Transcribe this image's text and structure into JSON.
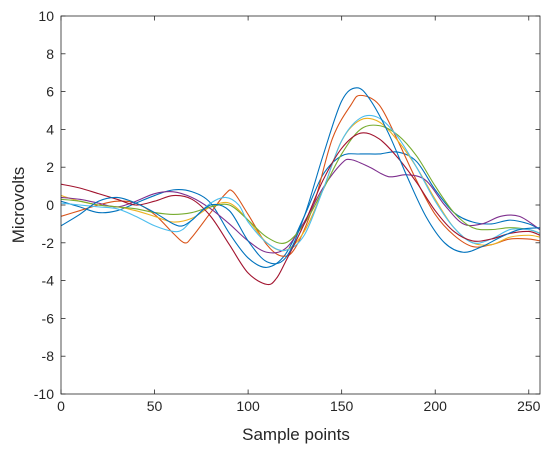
{
  "chart_data": {
    "type": "line",
    "title": "",
    "xlabel": "Sample points",
    "ylabel": "Microvolts",
    "xlim": [
      0,
      256
    ],
    "ylim": [
      -10,
      10
    ],
    "xticks": [
      0,
      50,
      100,
      150,
      200,
      250
    ],
    "yticks": [
      -10,
      -8,
      -6,
      -4,
      -2,
      0,
      2,
      4,
      6,
      8,
      10
    ],
    "grid": false,
    "legend": "none",
    "series": [
      {
        "color": "#0072BD",
        "points": [
          [
            0,
            0.2
          ],
          [
            10,
            -0.1
          ],
          [
            20,
            -0.4
          ],
          [
            30,
            -0.3
          ],
          [
            40,
            0.1
          ],
          [
            50,
            0.5
          ],
          [
            60,
            0.8
          ],
          [
            70,
            0.7
          ],
          [
            80,
            0.1
          ],
          [
            90,
            -1.5
          ],
          [
            100,
            -2.8
          ],
          [
            110,
            -3.3
          ],
          [
            120,
            -2.6
          ],
          [
            130,
            -0.6
          ],
          [
            140,
            1.6
          ],
          [
            150,
            2.6
          ],
          [
            160,
            2.7
          ],
          [
            170,
            2.7
          ],
          [
            180,
            2.8
          ],
          [
            190,
            2.3
          ],
          [
            200,
            0.8
          ],
          [
            210,
            -0.4
          ],
          [
            220,
            -0.9
          ],
          [
            230,
            -1.0
          ],
          [
            240,
            -0.8
          ],
          [
            250,
            -1.0
          ],
          [
            256,
            -1.3
          ]
        ]
      },
      {
        "color": "#D95319",
        "points": [
          [
            0,
            -0.6
          ],
          [
            10,
            -0.3
          ],
          [
            20,
            0.0
          ],
          [
            30,
            0.2
          ],
          [
            40,
            0.1
          ],
          [
            50,
            -0.5
          ],
          [
            60,
            -1.5
          ],
          [
            66,
            -2.0
          ],
          [
            70,
            -1.7
          ],
          [
            80,
            -0.4
          ],
          [
            88,
            0.6
          ],
          [
            92,
            0.7
          ],
          [
            100,
            -0.5
          ],
          [
            110,
            -2.1
          ],
          [
            118,
            -2.7
          ],
          [
            125,
            -2.3
          ],
          [
            135,
            0.0
          ],
          [
            145,
            3.5
          ],
          [
            155,
            5.3
          ],
          [
            160,
            5.8
          ],
          [
            170,
            5.3
          ],
          [
            180,
            3.4
          ],
          [
            190,
            1.3
          ],
          [
            200,
            -0.5
          ],
          [
            210,
            -1.6
          ],
          [
            220,
            -2.2
          ],
          [
            230,
            -2.1
          ],
          [
            240,
            -1.8
          ],
          [
            250,
            -1.8
          ],
          [
            256,
            -1.9
          ]
        ]
      },
      {
        "color": "#EDB120",
        "points": [
          [
            0,
            0.5
          ],
          [
            10,
            0.2
          ],
          [
            20,
            0.0
          ],
          [
            30,
            -0.1
          ],
          [
            40,
            -0.3
          ],
          [
            50,
            -0.6
          ],
          [
            60,
            -0.9
          ],
          [
            70,
            -0.7
          ],
          [
            80,
            -0.1
          ],
          [
            90,
            0.1
          ],
          [
            100,
            -0.8
          ],
          [
            110,
            -2.0
          ],
          [
            120,
            -2.4
          ],
          [
            130,
            -1.4
          ],
          [
            140,
            0.8
          ],
          [
            150,
            3.4
          ],
          [
            160,
            4.5
          ],
          [
            170,
            4.4
          ],
          [
            180,
            3.4
          ],
          [
            190,
            2.0
          ],
          [
            200,
            0.3
          ],
          [
            210,
            -1.2
          ],
          [
            220,
            -2.0
          ],
          [
            230,
            -2.1
          ],
          [
            240,
            -1.7
          ],
          [
            250,
            -1.6
          ],
          [
            256,
            -1.7
          ]
        ]
      },
      {
        "color": "#7E2F8E",
        "points": [
          [
            0,
            0.4
          ],
          [
            10,
            0.3
          ],
          [
            20,
            0.1
          ],
          [
            30,
            -0.1
          ],
          [
            40,
            0.2
          ],
          [
            50,
            0.6
          ],
          [
            60,
            0.7
          ],
          [
            70,
            0.4
          ],
          [
            80,
            -0.2
          ],
          [
            90,
            -1.0
          ],
          [
            100,
            -1.9
          ],
          [
            110,
            -2.5
          ],
          [
            120,
            -2.3
          ],
          [
            130,
            -0.9
          ],
          [
            140,
            0.9
          ],
          [
            150,
            2.2
          ],
          [
            155,
            2.4
          ],
          [
            165,
            2.0
          ],
          [
            175,
            1.5
          ],
          [
            185,
            1.6
          ],
          [
            195,
            1.3
          ],
          [
            205,
            0.0
          ],
          [
            215,
            -1.0
          ],
          [
            225,
            -1.0
          ],
          [
            235,
            -0.6
          ],
          [
            245,
            -0.6
          ],
          [
            256,
            -1.3
          ]
        ]
      },
      {
        "color": "#77AC30",
        "points": [
          [
            0,
            0.3
          ],
          [
            10,
            0.2
          ],
          [
            20,
            0.0
          ],
          [
            30,
            -0.1
          ],
          [
            40,
            -0.2
          ],
          [
            50,
            -0.4
          ],
          [
            60,
            -0.5
          ],
          [
            70,
            -0.4
          ],
          [
            80,
            -0.1
          ],
          [
            90,
            0.0
          ],
          [
            100,
            -0.8
          ],
          [
            110,
            -1.7
          ],
          [
            120,
            -2.0
          ],
          [
            130,
            -1.0
          ],
          [
            140,
            0.8
          ],
          [
            150,
            2.7
          ],
          [
            160,
            4.0
          ],
          [
            170,
            4.2
          ],
          [
            180,
            3.7
          ],
          [
            190,
            2.6
          ],
          [
            200,
            1.0
          ],
          [
            210,
            -0.4
          ],
          [
            220,
            -1.2
          ],
          [
            230,
            -1.3
          ],
          [
            240,
            -1.2
          ],
          [
            250,
            -1.3
          ],
          [
            256,
            -1.5
          ]
        ]
      },
      {
        "color": "#4DBEEE",
        "points": [
          [
            0,
            0.1
          ],
          [
            10,
            0.0
          ],
          [
            20,
            -0.1
          ],
          [
            30,
            -0.2
          ],
          [
            40,
            -0.6
          ],
          [
            50,
            -1.1
          ],
          [
            60,
            -1.4
          ],
          [
            65,
            -1.3
          ],
          [
            70,
            -0.8
          ],
          [
            80,
            0.1
          ],
          [
            88,
            0.4
          ],
          [
            95,
            0.0
          ],
          [
            100,
            -0.9
          ],
          [
            110,
            -2.0
          ],
          [
            120,
            -2.4
          ],
          [
            130,
            -1.6
          ],
          [
            140,
            0.8
          ],
          [
            150,
            3.4
          ],
          [
            160,
            4.6
          ],
          [
            170,
            4.6
          ],
          [
            180,
            3.6
          ],
          [
            190,
            2.0
          ],
          [
            200,
            0.2
          ],
          [
            210,
            -1.2
          ],
          [
            220,
            -2.0
          ],
          [
            230,
            -1.8
          ],
          [
            240,
            -1.3
          ],
          [
            250,
            -1.3
          ],
          [
            256,
            -1.5
          ]
        ]
      },
      {
        "color": "#A2142F",
        "points": [
          [
            0,
            1.1
          ],
          [
            10,
            0.9
          ],
          [
            20,
            0.6
          ],
          [
            30,
            0.3
          ],
          [
            40,
            0.0
          ],
          [
            50,
            0.2
          ],
          [
            60,
            0.5
          ],
          [
            70,
            0.3
          ],
          [
            80,
            -0.6
          ],
          [
            90,
            -2.1
          ],
          [
            100,
            -3.6
          ],
          [
            110,
            -4.2
          ],
          [
            115,
            -3.9
          ],
          [
            120,
            -3.0
          ],
          [
            130,
            -1.0
          ],
          [
            140,
            1.3
          ],
          [
            150,
            3.0
          ],
          [
            160,
            3.8
          ],
          [
            170,
            3.5
          ],
          [
            180,
            2.5
          ],
          [
            190,
            1.2
          ],
          [
            200,
            -0.3
          ],
          [
            210,
            -1.4
          ],
          [
            220,
            -1.9
          ],
          [
            230,
            -1.8
          ],
          [
            240,
            -1.5
          ],
          [
            250,
            -1.4
          ],
          [
            256,
            -1.6
          ]
        ]
      },
      {
        "color": "#0072BD",
        "points": [
          [
            0,
            -1.1
          ],
          [
            10,
            -0.5
          ],
          [
            20,
            0.2
          ],
          [
            30,
            0.4
          ],
          [
            40,
            0.1
          ],
          [
            50,
            -0.4
          ],
          [
            60,
            -1.0
          ],
          [
            65,
            -1.1
          ],
          [
            70,
            -0.8
          ],
          [
            80,
            0.0
          ],
          [
            90,
            -0.3
          ],
          [
            100,
            -1.9
          ],
          [
            110,
            -3.0
          ],
          [
            120,
            -2.8
          ],
          [
            130,
            -0.6
          ],
          [
            140,
            2.6
          ],
          [
            150,
            5.5
          ],
          [
            158,
            6.2
          ],
          [
            165,
            5.6
          ],
          [
            175,
            3.8
          ],
          [
            185,
            1.5
          ],
          [
            195,
            -0.6
          ],
          [
            205,
            -2.0
          ],
          [
            215,
            -2.5
          ],
          [
            225,
            -2.2
          ],
          [
            235,
            -1.7
          ],
          [
            245,
            -1.3
          ],
          [
            256,
            -1.2
          ]
        ]
      }
    ]
  }
}
